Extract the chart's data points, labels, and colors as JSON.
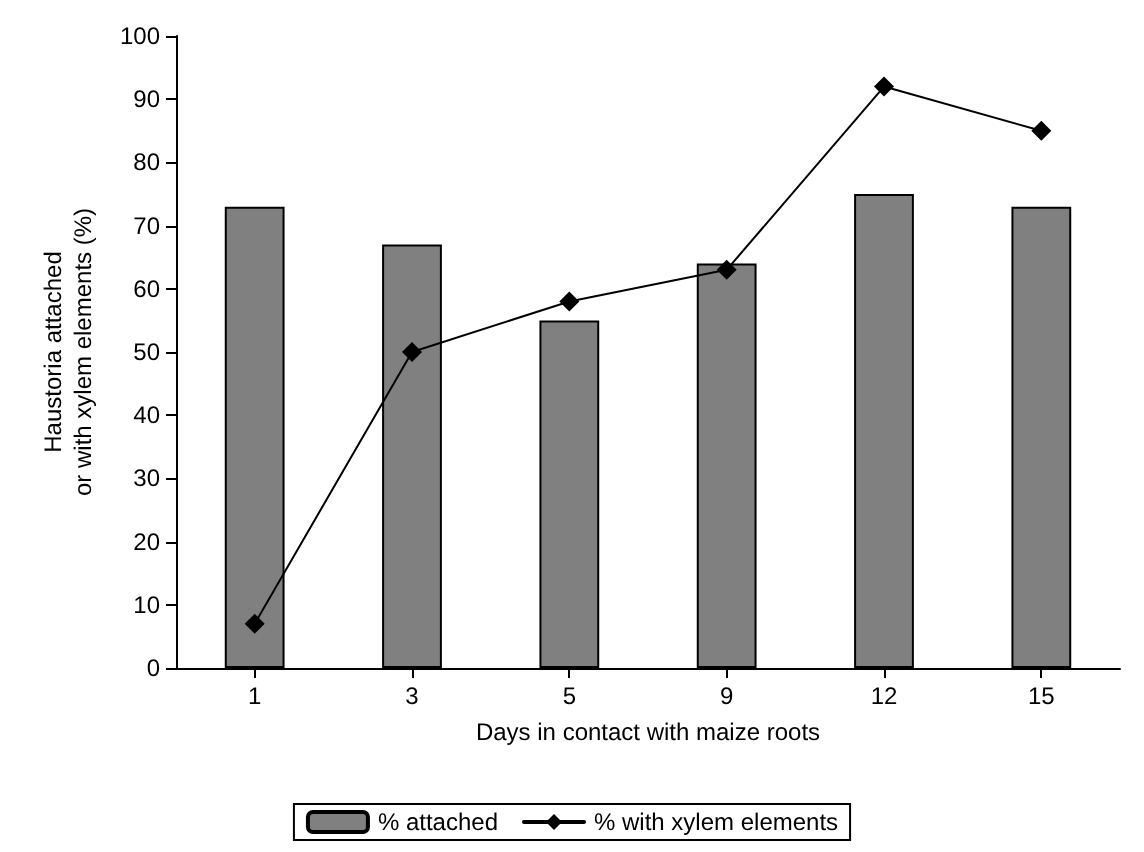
{
  "chart_data": {
    "type": "bar",
    "xlabel": "Days in contact with maize roots",
    "ylabel": "Haustoria attached\nor with xylem elements (%)",
    "categories": [
      "1",
      "3",
      "5",
      "9",
      "12",
      "15"
    ],
    "series": [
      {
        "name": "% attached",
        "color": "#808080",
        "values": [
          73,
          67,
          55,
          64,
          75,
          73
        ]
      },
      {
        "name": "% with xylem elements",
        "type": "line",
        "color": "#000000",
        "values": [
          7,
          50,
          58,
          63,
          92,
          85
        ]
      }
    ],
    "ylim": [
      0,
      100
    ],
    "yticks": [
      0,
      10,
      20,
      30,
      40,
      50,
      60,
      70,
      80,
      90,
      100
    ],
    "grid": false,
    "legend": "bottom",
    "marker": "diamond",
    "line_style": "solid"
  }
}
